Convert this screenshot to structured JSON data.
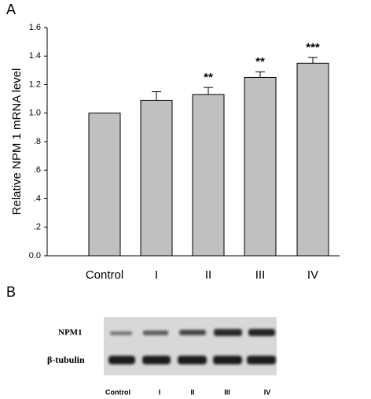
{
  "panel_labels": [
    "A",
    "B"
  ],
  "chart_data": {
    "type": "bar",
    "y_label": "Relative NPM 1 mRNA level",
    "categories": [
      "Control",
      "I",
      "II",
      "III",
      "IV"
    ],
    "values": [
      1.0,
      1.09,
      1.13,
      1.25,
      1.35
    ],
    "errors": [
      0,
      0.06,
      0.05,
      0.04,
      0.04
    ],
    "significance": [
      null,
      null,
      "**",
      "**",
      "***"
    ],
    "color": "#c0c0c0",
    "ylim": [
      0,
      1.6
    ],
    "yticks": [
      {
        "value": 0,
        "label": "0.0"
      },
      {
        "value": 0.2,
        "label": ".2"
      },
      {
        "value": 0.4,
        "label": ".4"
      },
      {
        "value": 0.6,
        "label": ".6"
      },
      {
        "value": 0.8,
        "label": ".8"
      },
      {
        "value": 1.0,
        "label": "1.0"
      },
      1.2,
      1.4,
      1.6
    ],
    "grid": false
  },
  "blot": {
    "rows": [
      "NPM1",
      "β-tubulin"
    ],
    "lanes": [
      "Control",
      "I",
      "II",
      "III",
      "IV"
    ]
  }
}
